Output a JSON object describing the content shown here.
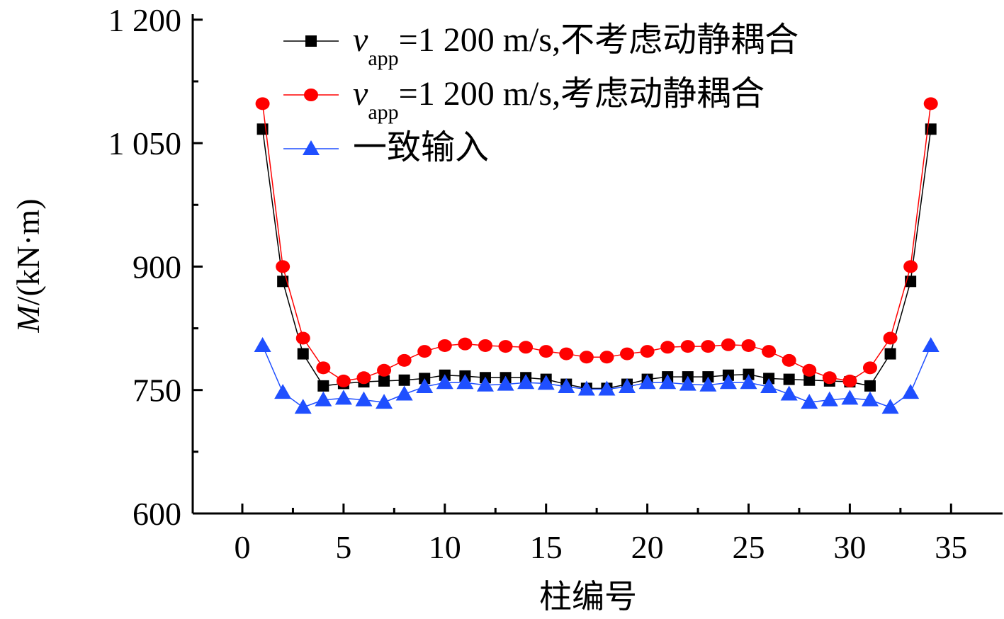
{
  "chart_data": {
    "type": "line",
    "xlabel": "柱编号",
    "ylabel_italic": "M",
    "ylabel_rest": "/(kN·m)",
    "xlim": [
      -2.45,
      37.5
    ],
    "ylim": [
      600,
      1200
    ],
    "xticks": [
      0,
      5,
      10,
      15,
      20,
      25,
      30,
      35
    ],
    "xtick_labels": [
      "0",
      "5",
      "10",
      "15",
      "20",
      "25",
      "30",
      "35"
    ],
    "yticks": [
      600,
      750,
      900,
      1050,
      1200
    ],
    "ytick_labels": [
      "600",
      "750",
      "900",
      "1 050",
      "1 200"
    ],
    "grid": false,
    "legend_position": "top",
    "x": [
      1,
      2,
      3,
      4,
      5,
      6,
      7,
      8,
      9,
      10,
      11,
      12,
      13,
      14,
      15,
      16,
      17,
      18,
      19,
      20,
      21,
      22,
      23,
      24,
      25,
      26,
      27,
      28,
      29,
      30,
      31,
      32,
      33,
      34
    ],
    "series": [
      {
        "name_italic": "v",
        "name_sub": "app",
        "name_rest": "=1 200 m/s,不考虑动静耦合",
        "color": "#000000",
        "marker": "square",
        "values": [
          1067,
          882,
          794,
          755,
          758,
          760,
          761,
          762,
          764,
          768,
          767,
          765,
          765,
          765,
          763,
          757,
          752,
          752,
          757,
          763,
          766,
          766,
          766,
          768,
          769,
          764,
          763,
          762,
          761,
          760,
          755,
          794,
          882,
          1067
        ]
      },
      {
        "name_italic": "v",
        "name_sub": "app",
        "name_rest": "=1 200 m/s,考虑动静耦合",
        "color": "#ff0000",
        "marker": "circle",
        "values": [
          1098,
          900,
          813,
          777,
          761,
          765,
          774,
          786,
          797,
          804,
          806,
          804,
          803,
          802,
          797,
          794,
          790,
          790,
          794,
          797,
          802,
          803,
          803,
          805,
          804,
          797,
          786,
          774,
          765,
          761,
          777,
          813,
          900,
          1098
        ]
      },
      {
        "name_italic": "",
        "name_sub": "",
        "name_rest": "一致输入",
        "color": "#1f4fff",
        "marker": "triangle",
        "values": [
          804,
          747,
          729,
          738,
          740,
          738,
          735,
          745,
          754,
          759,
          759,
          756,
          757,
          759,
          758,
          754,
          751,
          751,
          754,
          759,
          759,
          757,
          756,
          759,
          759,
          754,
          745,
          735,
          738,
          740,
          738,
          729,
          747,
          804
        ]
      }
    ]
  }
}
